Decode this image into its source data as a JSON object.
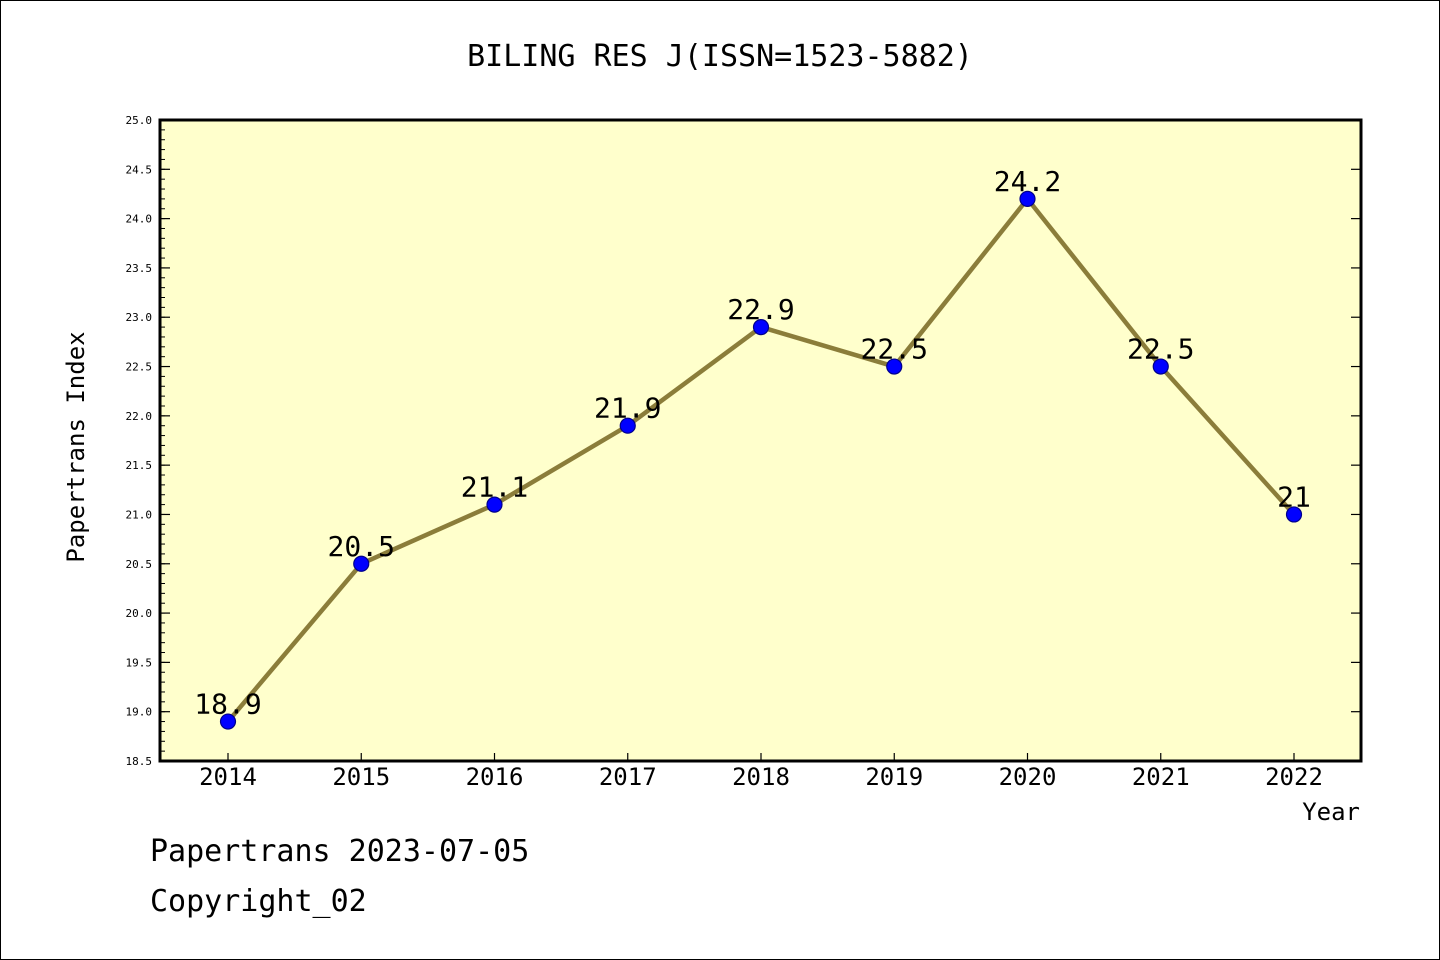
{
  "chart_data": {
    "type": "line",
    "title": "BILING RES J(ISSN=1523-5882)",
    "xlabel": "Year",
    "ylabel": "Papertrans Index",
    "categories": [
      "2014",
      "2015",
      "2016",
      "2017",
      "2018",
      "2019",
      "2020",
      "2021",
      "2022"
    ],
    "series": [
      {
        "values": [
          18.9,
          20.5,
          21.1,
          21.9,
          22.9,
          22.5,
          24.2,
          22.5,
          21.0
        ],
        "labels": [
          "18.9",
          "20.5",
          "21.1",
          "21.9",
          "22.9",
          "22.5",
          "24.2",
          "22.5",
          "21"
        ]
      }
    ],
    "ylim": [
      18.5,
      25.0
    ],
    "yticks": [
      "18.5",
      "19.0",
      "19.5",
      "20.0",
      "20.5",
      "21.0",
      "21.5",
      "22.0",
      "22.5",
      "23.0",
      "23.5",
      "24.0",
      "24.5",
      "25.0"
    ],
    "grid": false,
    "legend": "none",
    "colors": {
      "plot_background": "#ffffcc",
      "line": "#8b7d3a",
      "marker": "#0000ff",
      "marker_edge": "#00008b"
    }
  },
  "footer": {
    "stamp": "Papertrans 2023-07-05",
    "copyright": "Copyright_02"
  }
}
